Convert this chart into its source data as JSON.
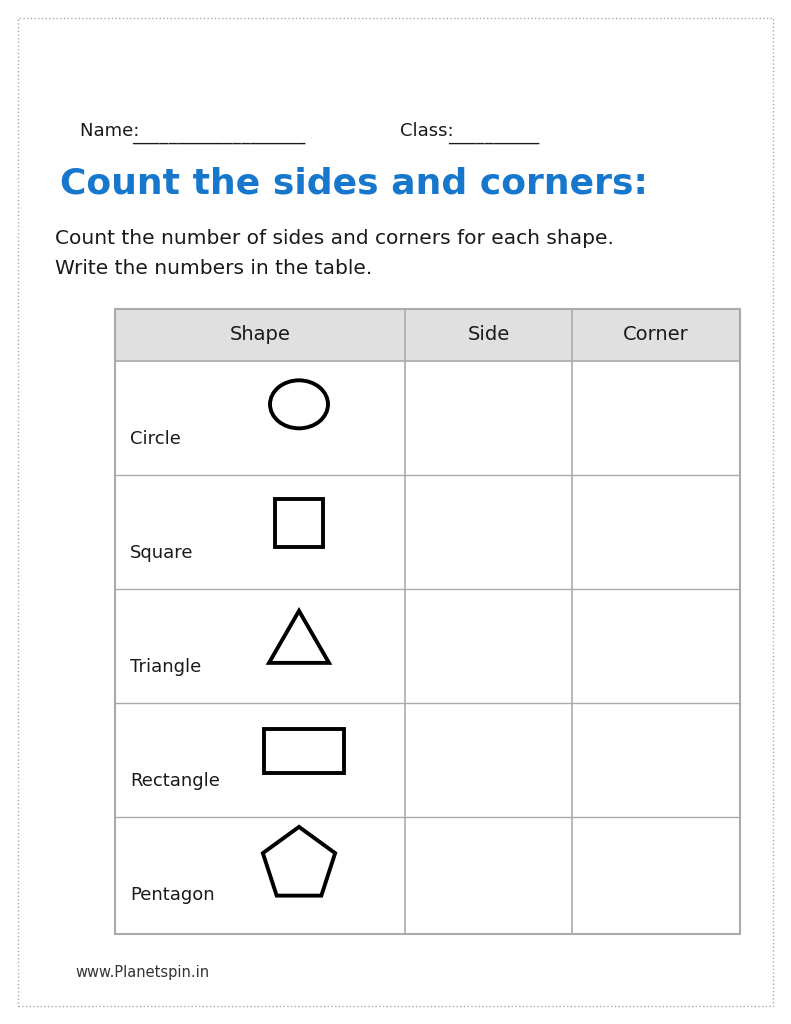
{
  "title": "Count the sides and corners:",
  "title_color": "#1777CC",
  "instruction_line1": "Count the number of sides and corners for each shape.",
  "instruction_line2": "Write the numbers in the table.",
  "name_label": "Name: ",
  "name_underline": "___________________",
  "class_label": "Class: ",
  "class_underline": "__________",
  "col_headers": [
    "Shape",
    "Side",
    "Corner"
  ],
  "row_labels": [
    "Circle",
    "Square",
    "Triangle",
    "Rectangle",
    "Pentagon"
  ],
  "background_color": "#ffffff",
  "border_color": "#aaaaaa",
  "header_bg": "#e0e0e0",
  "table_line_color": "#aaaaaa",
  "text_color": "#1a1a1a",
  "footer": "www.Planetspin.in",
  "outer_border_color": "#aaaaaa",
  "page_bg": "#f5f5f5"
}
